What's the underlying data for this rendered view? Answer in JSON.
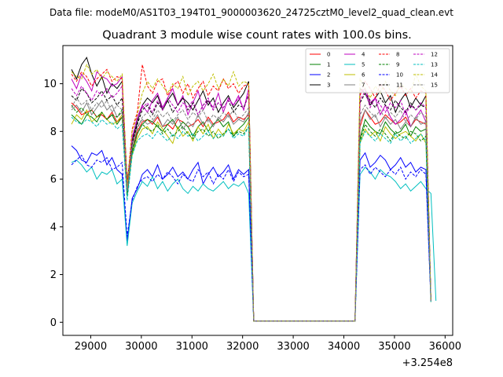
{
  "header": {
    "data_file": "Data file: modeM0/AS1T03_194T01_9000003620_24725cztM0_level2_quad_clean.evt"
  },
  "chart_data": {
    "type": "line",
    "title": "Quadrant 3 module wise count rates with 100.0s bins.",
    "xlabel": "",
    "ylabel": "",
    "x_offset_label": "+3.254e8",
    "xlim": [
      28450,
      36150
    ],
    "ylim": [
      -0.55,
      11.6
    ],
    "x_ticks": [
      29000,
      30000,
      31000,
      32000,
      33000,
      34000,
      35000,
      36000
    ],
    "x_tick_labels": [
      "29000",
      "30000",
      "31000",
      "32000",
      "33000",
      "34000",
      "35000",
      "36000"
    ],
    "y_ticks": [
      0,
      2,
      4,
      6,
      8,
      10
    ],
    "y_tick_labels": [
      "0",
      "2",
      "4",
      "6",
      "8",
      "10"
    ],
    "grid": false,
    "legend_position": "top-right",
    "x_start": 28620,
    "bin": 100,
    "series": [
      {
        "name": "0",
        "color": "#ff0000",
        "dash": "solid",
        "segments": [
          [
            9.2,
            9.0,
            8.7,
            8.8,
            8.9,
            8.6,
            8.7,
            8.5,
            8.8,
            8.4,
            8.6,
            5.8,
            7.3,
            8.0,
            8.4,
            8.5,
            8.3,
            8.6,
            8.2,
            8.3,
            8.1,
            8.5,
            8.4,
            8.2,
            8.3,
            8.5,
            8.2,
            8.6,
            8.3,
            8.4,
            8.5,
            8.8,
            8.4,
            8.6,
            8.5,
            8.7,
            0.05
          ],
          [
            0.05,
            8.2,
            8.9,
            8.6,
            8.3,
            8.4,
            8.7,
            8.5,
            8.3,
            8.4,
            8.6,
            8.2,
            8.5,
            8.4,
            8.3,
            0.9
          ]
        ]
      },
      {
        "name": "1",
        "color": "#008000",
        "dash": "solid",
        "segments": [
          [
            8.7,
            8.5,
            8.3,
            8.7,
            8.6,
            8.4,
            8.8,
            8.5,
            8.7,
            8.3,
            8.6,
            5.3,
            7.1,
            7.9,
            8.3,
            8.5,
            8.4,
            8.2,
            8.0,
            8.3,
            8.5,
            8.1,
            8.4,
            8.2,
            7.8,
            8.2,
            8.4,
            8.0,
            8.3,
            8.5,
            8.2,
            8.4,
            7.8,
            8.1,
            8.3,
            8.6,
            0.05
          ],
          [
            0.05,
            7.7,
            8.5,
            8.2,
            8.0,
            7.9,
            8.4,
            8.1,
            7.9,
            8.0,
            8.3,
            7.8,
            8.2,
            8.0,
            8.1,
            0.9
          ]
        ]
      },
      {
        "name": "2",
        "color": "#0000ff",
        "dash": "solid",
        "segments": [
          [
            7.4,
            7.2,
            6.8,
            6.7,
            7.1,
            7.0,
            7.2,
            6.6,
            6.9,
            6.4,
            6.2,
            3.4,
            5.2,
            5.6,
            6.2,
            6.4,
            6.1,
            6.6,
            6.0,
            6.2,
            6.5,
            6.1,
            6.3,
            6.0,
            6.4,
            6.7,
            5.8,
            6.2,
            6.5,
            6.1,
            6.3,
            6.6,
            6.0,
            6.4,
            6.2,
            6.4,
            0.05
          ],
          [
            0.05,
            6.8,
            7.1,
            6.5,
            6.7,
            7.0,
            6.8,
            6.4,
            6.6,
            6.9,
            6.5,
            6.7,
            6.3,
            6.5,
            6.4,
            0.85
          ]
        ]
      },
      {
        "name": "3",
        "color": "#000000",
        "dash": "solid",
        "segments": [
          [
            10.6,
            10.2,
            10.8,
            11.1,
            10.4,
            9.9,
            10.3,
            9.6,
            10.0,
            9.8,
            10.1,
            5.9,
            7.6,
            8.4,
            9.1,
            9.4,
            9.2,
            9.5,
            8.9,
            9.3,
            9.6,
            9.1,
            9.4,
            9.2,
            8.9,
            9.3,
            9.7,
            9.1,
            9.4,
            8.8,
            9.2,
            9.5,
            9.0,
            9.3,
            9.6,
            10.1,
            0.05
          ],
          [
            0.05,
            9.8,
            9.6,
            9.1,
            9.4,
            9.7,
            9.2,
            9.5,
            8.8,
            9.3,
            9.6,
            9.0,
            9.4,
            9.1,
            9.5,
            0.9
          ]
        ]
      },
      {
        "name": "4",
        "color": "#bf00bf",
        "dash": "solid",
        "segments": [
          [
            10.2,
            9.8,
            10.4,
            10.1,
            9.7,
            10.5,
            10.3,
            10.2,
            9.9,
            10.0,
            10.3,
            5.6,
            7.7,
            8.6,
            9.1,
            8.8,
            9.3,
            9.6,
            9.0,
            9.4,
            9.8,
            9.1,
            9.5,
            8.7,
            9.2,
            9.7,
            8.9,
            9.3,
            9.0,
            9.6,
            8.8,
            9.4,
            9.1,
            9.5,
            8.9,
            9.8,
            0.05
          ],
          [
            0.05,
            9.6,
            9.8,
            9.2,
            9.4,
            8.7,
            9.1,
            8.6,
            8.3,
            8.5,
            8.9,
            8.2,
            8.6,
            8.9,
            8.4,
            0.9
          ]
        ]
      },
      {
        "name": "5",
        "color": "#00bfbf",
        "dash": "solid",
        "segments": [
          [
            6.7,
            6.8,
            6.6,
            6.3,
            6.5,
            6.0,
            6.3,
            6.2,
            6.4,
            5.8,
            6.0,
            3.2,
            5.0,
            5.5,
            5.9,
            5.7,
            6.1,
            5.6,
            5.9,
            5.5,
            5.8,
            6.0,
            5.6,
            5.4,
            5.7,
            5.5,
            5.8,
            5.6,
            5.5,
            5.7,
            5.9,
            5.6,
            5.8,
            5.7,
            5.9,
            5.4,
            0.05
          ],
          [
            0.05,
            6.2,
            6.5,
            6.3,
            6.0,
            6.4,
            6.2,
            6.1,
            5.9,
            5.6,
            5.8,
            5.5,
            5.7,
            5.9,
            5.6,
            5.4,
            0.9
          ]
        ]
      },
      {
        "name": "6",
        "color": "#bfbf00",
        "dash": "solid",
        "segments": [
          [
            8.3,
            8.7,
            8.5,
            8.9,
            8.4,
            8.6,
            8.8,
            8.5,
            8.3,
            8.4,
            8.7,
            5.5,
            7.0,
            7.7,
            8.1,
            8.2,
            7.9,
            8.4,
            8.1,
            7.8,
            7.5,
            8.2,
            7.8,
            8.0,
            7.6,
            8.2,
            7.9,
            8.3,
            7.7,
            8.1,
            7.8,
            8.3,
            7.9,
            8.1,
            8.0,
            8.4,
            0.05
          ],
          [
            0.05,
            7.5,
            8.1,
            7.8,
            8.0,
            7.6,
            8.2,
            7.9,
            7.7,
            7.9,
            8.0,
            7.8,
            7.6,
            7.9,
            7.5,
            0.85
          ]
        ]
      },
      {
        "name": "7",
        "color": "#808080",
        "dash": "solid",
        "segments": [
          [
            8.9,
            9.1,
            8.8,
            9.2,
            8.7,
            9.0,
            9.3,
            8.9,
            9.1,
            8.6,
            8.8,
            5.4,
            7.3,
            8.2,
            8.5,
            8.3,
            8.4,
            8.7,
            8.2,
            8.5,
            8.3,
            8.6,
            8.1,
            8.4,
            8.2,
            8.7,
            8.3,
            8.5,
            8.2,
            8.6,
            8.4,
            8.7,
            8.3,
            8.5,
            8.4,
            8.8,
            0.05
          ],
          [
            0.05,
            8.4,
            8.9,
            8.5,
            8.7,
            8.2,
            8.6,
            8.3,
            8.5,
            8.1,
            8.4,
            8.2,
            8.6,
            8.3,
            8.4,
            0.9
          ]
        ]
      },
      {
        "name": "8",
        "color": "#ff0000",
        "dash": "dashed",
        "segments": [
          [
            10.4,
            10.1,
            10.5,
            10.3,
            9.9,
            10.2,
            10.4,
            10.6,
            10.1,
            10.3,
            10.2,
            5.8,
            8.1,
            8.8,
            10.8,
            9.9,
            9.6,
            10.1,
            10.2,
            9.5,
            9.9,
            10.1,
            9.6,
            10.0,
            9.4,
            9.8,
            10.1,
            9.5,
            9.9,
            9.7,
            10.2,
            9.8,
            10.0,
            9.6,
            9.9,
            10.0,
            0.05
          ],
          [
            0.05,
            9.5,
            10.1,
            9.8,
            9.4,
            10.0,
            9.7,
            9.3,
            9.6,
            9.9,
            9.5,
            9.8,
            9.4,
            9.7,
            9.6,
            0.9
          ]
        ]
      },
      {
        "name": "9",
        "color": "#008000",
        "dash": "dashed",
        "segments": [
          [
            9.1,
            8.8,
            9.0,
            8.7,
            8.9,
            8.6,
            8.8,
            8.5,
            8.7,
            8.6,
            8.9,
            5.4,
            7.2,
            7.9,
            8.3,
            8.1,
            8.0,
            8.3,
            7.9,
            8.1,
            7.8,
            8.0,
            8.2,
            7.9,
            7.7,
            8.0,
            8.1,
            7.8,
            8.0,
            7.7,
            7.9,
            8.1,
            7.8,
            8.0,
            7.9,
            8.2,
            0.05
          ],
          [
            0.05,
            7.6,
            8.3,
            8.0,
            7.8,
            8.1,
            7.9,
            7.6,
            8.0,
            7.8,
            7.7,
            8.0,
            7.9,
            7.6,
            7.8,
            0.9
          ]
        ]
      },
      {
        "name": "10",
        "color": "#0000ff",
        "dash": "dashed",
        "segments": [
          [
            6.6,
            6.8,
            7.0,
            6.6,
            6.5,
            6.8,
            6.7,
            6.9,
            6.4,
            6.5,
            6.7,
            3.6,
            5.1,
            5.7,
            6.0,
            6.1,
            5.9,
            6.2,
            6.0,
            6.3,
            6.1,
            5.8,
            6.2,
            6.0,
            5.9,
            6.4,
            6.1,
            6.3,
            5.8,
            6.2,
            6.0,
            6.4,
            5.9,
            6.3,
            6.1,
            6.2,
            0.05
          ],
          [
            0.05,
            6.4,
            6.6,
            6.2,
            6.5,
            6.3,
            6.1,
            6.4,
            6.2,
            6.5,
            6.0,
            6.3,
            6.1,
            6.4,
            6.2,
            0.9
          ]
        ]
      },
      {
        "name": "11",
        "color": "#000000",
        "dash": "dashed",
        "segments": [
          [
            9.5,
            9.3,
            9.8,
            9.6,
            9.2,
            9.4,
            9.7,
            9.3,
            9.5,
            9.1,
            9.4,
            5.7,
            7.5,
            8.3,
            8.9,
            9.1,
            8.7,
            9.2,
            8.9,
            9.3,
            8.8,
            9.1,
            9.4,
            8.9,
            9.2,
            8.7,
            9.1,
            9.3,
            8.9,
            9.2,
            9.0,
            9.3,
            8.8,
            9.1,
            9.0,
            9.5,
            0.05
          ],
          [
            0.05,
            9.2,
            9.6,
            9.3,
            9.0,
            9.4,
            9.1,
            8.9,
            9.3,
            9.0,
            8.8,
            9.2,
            8.9,
            9.1,
            9.0,
            0.9
          ]
        ]
      },
      {
        "name": "12",
        "color": "#bf00bf",
        "dash": "dashed",
        "segments": [
          [
            9.8,
            9.5,
            9.9,
            9.6,
            9.3,
            9.7,
            9.5,
            9.8,
            9.4,
            9.6,
            9.9,
            5.6,
            7.8,
            8.5,
            9.0,
            9.2,
            8.8,
            9.3,
            8.9,
            9.4,
            9.1,
            8.8,
            9.2,
            9.0,
            9.3,
            8.7,
            9.1,
            9.4,
            8.9,
            9.2,
            9.0,
            9.3,
            9.1,
            9.4,
            8.9,
            9.6,
            0.05
          ],
          [
            0.05,
            9.3,
            9.7,
            9.0,
            9.4,
            9.1,
            8.8,
            9.2,
            9.0,
            9.3,
            8.7,
            9.1,
            8.9,
            9.2,
            9.0,
            0.9
          ]
        ]
      },
      {
        "name": "13",
        "color": "#00bfbf",
        "dash": "dashed",
        "segments": [
          [
            8.6,
            8.4,
            8.3,
            8.5,
            8.4,
            8.2,
            8.5,
            8.3,
            8.4,
            8.1,
            8.3,
            5.1,
            7.0,
            7.6,
            7.8,
            7.9,
            7.7,
            8.0,
            7.8,
            7.6,
            7.9,
            7.7,
            8.0,
            7.8,
            7.9,
            7.6,
            7.8,
            8.0,
            7.7,
            7.9,
            7.8,
            8.1,
            7.7,
            7.9,
            7.8,
            8.2,
            0.05
          ],
          [
            0.05,
            7.5,
            8.0,
            7.8,
            7.6,
            7.9,
            7.7,
            7.5,
            7.9,
            7.6,
            7.8,
            7.5,
            7.7,
            7.9,
            7.6,
            0.85
          ]
        ]
      },
      {
        "name": "14",
        "color": "#bfbf00",
        "dash": "dashed",
        "segments": [
          [
            10.5,
            10.3,
            10.2,
            10.8,
            10.4,
            10.6,
            10.2,
            10.5,
            10.3,
            10.1,
            10.4,
            5.7,
            8.0,
            8.7,
            9.6,
            10.1,
            9.8,
            10.2,
            9.9,
            9.6,
            10.0,
            9.8,
            10.3,
            9.5,
            9.9,
            10.1,
            9.7,
            10.0,
            10.4,
            9.8,
            10.2,
            9.9,
            10.5,
            9.9,
            10.1,
            10.0,
            0.05
          ],
          [
            0.05,
            10.2,
            9.8,
            9.4,
            9.9,
            9.6,
            10.1,
            9.7,
            9.5,
            10.0,
            9.8,
            9.6,
            10.4,
            9.9,
            9.7,
            0.9
          ]
        ]
      },
      {
        "name": "15",
        "color": "#808080",
        "dash": "dashed",
        "segments": [
          [
            9.0,
            9.4,
            9.1,
            9.3,
            8.9,
            9.2,
            9.0,
            9.3,
            8.8,
            9.1,
            8.9,
            5.5,
            7.4,
            8.1,
            8.6,
            8.8,
            8.5,
            8.9,
            8.6,
            8.8,
            8.4,
            8.7,
            8.9,
            8.5,
            8.8,
            8.6,
            8.9,
            8.4,
            8.7,
            8.5,
            8.8,
            8.6,
            8.9,
            8.5,
            8.7,
            9.0,
            0.05
          ],
          [
            0.05,
            8.7,
            9.1,
            8.8,
            8.6,
            8.9,
            8.5,
            8.8,
            8.6,
            8.9,
            8.4,
            8.7,
            8.5,
            8.8,
            8.6,
            0.9
          ]
        ]
      }
    ]
  }
}
